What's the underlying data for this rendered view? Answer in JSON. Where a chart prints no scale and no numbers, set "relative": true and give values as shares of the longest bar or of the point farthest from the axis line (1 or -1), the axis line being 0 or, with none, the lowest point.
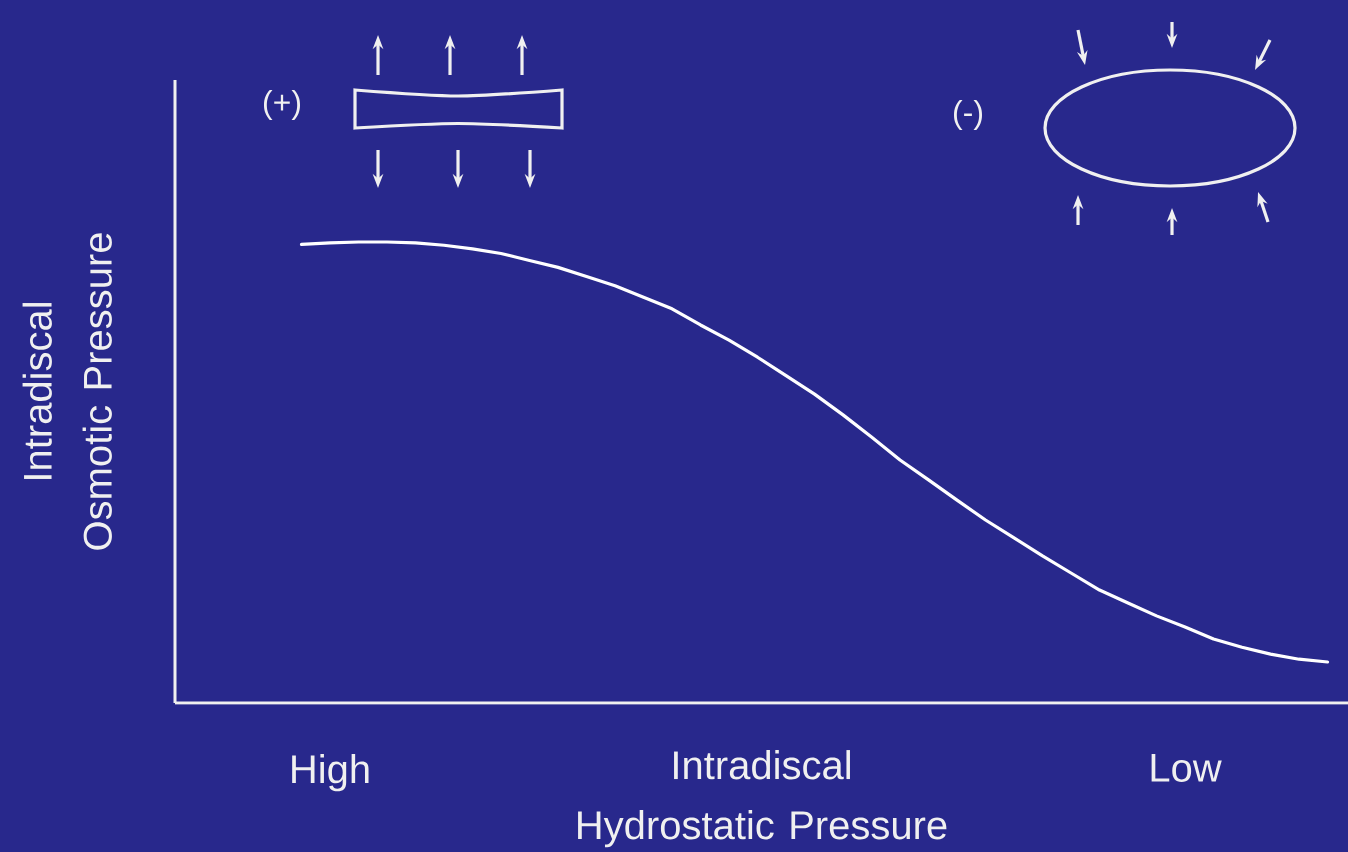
{
  "chart_data": {
    "type": "line",
    "relative": true,
    "xlabel": "Intradiscal Hydrostatic Pressure",
    "ylabel": "Intradiscal Osmotic Pressure",
    "annotations": [
      "(+)",
      "(-)"
    ],
    "categories": [
      null,
      "High",
      null,
      null,
      null,
      null,
      null,
      null,
      null,
      null,
      null,
      null,
      null,
      null,
      null,
      null,
      null,
      null,
      null,
      null,
      null,
      null,
      null,
      null,
      null,
      null,
      null,
      null,
      null,
      null,
      null,
      "Low",
      null,
      null,
      null,
      null,
      null
    ],
    "series": [
      {
        "color": "#ffffff",
        "values": [
          0.995,
          0.998,
          1.0,
          1.0,
          0.998,
          0.993,
          0.985,
          0.975,
          0.96,
          0.945,
          0.925,
          0.905,
          0.88,
          0.855,
          0.82,
          0.787,
          0.75,
          0.71,
          0.67,
          0.625,
          0.577,
          0.527,
          0.484,
          0.44,
          0.397,
          0.358,
          0.319,
          0.282,
          0.245,
          0.217,
          0.189,
          0.165,
          0.139,
          0.121,
          0.106,
          0.095,
          0.089
        ]
      }
    ]
  }
}
